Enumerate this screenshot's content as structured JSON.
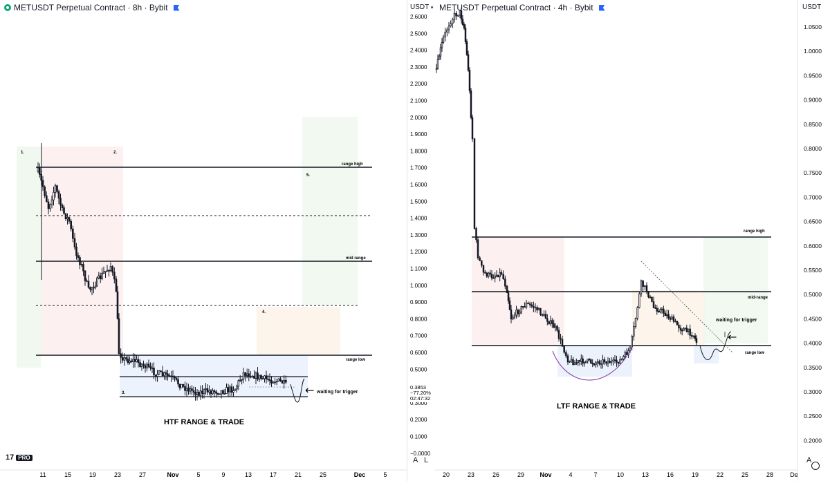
{
  "left": {
    "header_title": "METUSDT Perpetual Contract · 8h · Bybit",
    "x_ticks": [
      "11",
      "15",
      "19",
      "23",
      "27",
      "Nov",
      "5",
      "9",
      "13",
      "17",
      "21",
      "25",
      "Dec",
      "5"
    ],
    "labels": {
      "range_high": "range high",
      "mid_range": "mid range",
      "range_low": "range low",
      "waiting": "waiting for trigger",
      "caption": "HTF RANGE & TRADE",
      "n1": "1.",
      "n2": "2.",
      "n3": "3.",
      "n4": "4.",
      "n5": "5."
    },
    "logo": "17",
    "logo_badge": "PRO"
  },
  "mid_axis": {
    "unit": "USDT",
    "ticks": [
      "2.6000",
      "2.5000",
      "2.4000",
      "2.3000",
      "2.2000",
      "2.1000",
      "2.0000",
      "1.9000",
      "1.8000",
      "1.7000",
      "1.6000",
      "1.5000",
      "1.4000",
      "1.3000",
      "1.2000",
      "1.1000",
      "1.0000",
      "0.9000",
      "0.8000",
      "0.7000",
      "0.6000",
      "0.5000",
      "0.4000",
      "0.3000",
      "0.2000",
      "0.1000",
      "−0.0000"
    ],
    "price_tag": {
      "price": "0.3853",
      "change": "−77.20%",
      "countdown": "02:47:32"
    },
    "buttons": [
      "A",
      "L"
    ]
  },
  "right": {
    "header_title": "METUSDT Perpetual Contract · 4h · Bybit",
    "x_ticks": [
      "20",
      "23",
      "26",
      "29",
      "Nov",
      "4",
      "7",
      "10",
      "13",
      "16",
      "19",
      "22",
      "25",
      "28",
      "De"
    ],
    "labels": {
      "range_high": "range high",
      "mid_range": "mid-range",
      "range_low": "range low",
      "waiting": "waiting for trigger",
      "caption": "LTF RANGE & TRADE"
    }
  },
  "right_axis": {
    "unit": "USDT",
    "ticks": [
      "1.0500",
      "1.0000",
      "0.9500",
      "0.9000",
      "0.8500",
      "0.8000",
      "0.7500",
      "0.7000",
      "0.6500",
      "0.6000",
      "0.5500",
      "0.5000",
      "0.4500",
      "0.4000",
      "0.3500",
      "0.3000",
      "0.2500",
      "0.2000"
    ],
    "buttons": [
      "A"
    ]
  },
  "chart_data": [
    {
      "type": "candlestick",
      "title": "METUSDT Perpetual Contract · 8h · Bybit",
      "ylim": [
        -0.05,
        2.65
      ],
      "levels": {
        "range_high": 1.7,
        "mid_range": 1.14,
        "range_low": 0.58,
        "lower_box_top": 0.44,
        "lower_box_bottom": 0.28
      },
      "dashed_levels": [
        1.42,
        0.87
      ],
      "annotations": [
        "1.",
        "2.",
        "3.",
        "4.",
        "5.",
        "range high",
        "mid range",
        "range low",
        "waiting for trigger",
        "HTF RANGE & TRADE"
      ],
      "path_close": [
        1.68,
        1.62,
        1.5,
        1.4,
        1.46,
        1.38,
        1.3,
        1.18,
        1.08,
        0.98,
        0.93,
        0.96,
        0.98,
        1.0,
        1.05,
        0.92,
        0.58,
        0.52,
        0.51,
        0.5,
        0.44,
        0.43,
        0.43,
        0.42,
        0.4,
        0.36,
        0.34,
        0.32,
        0.32,
        0.33,
        0.35,
        0.42,
        0.45,
        0.43,
        0.41,
        0.4,
        0.38
      ]
    },
    {
      "type": "candlestick",
      "title": "METUSDT Perpetual Contract · 4h · Bybit",
      "ylim": [
        0.17,
        1.085
      ],
      "levels": {
        "range_high": 0.618,
        "mid_range": 0.504,
        "range_low": 0.395
      },
      "annotations": [
        "range high",
        "mid-range",
        "range low",
        "waiting for trigger",
        "LTF RANGE & TRADE"
      ],
      "path_close": [
        0.95,
        1.0,
        1.05,
        1.06,
        1.04,
        0.98,
        0.62,
        0.56,
        0.54,
        0.53,
        0.56,
        0.52,
        0.44,
        0.46,
        0.47,
        0.46,
        0.45,
        0.43,
        0.4,
        0.36,
        0.35,
        0.34,
        0.35,
        0.34,
        0.36,
        0.38,
        0.44,
        0.52,
        0.48,
        0.46,
        0.44,
        0.43,
        0.45,
        0.4,
        0.38,
        0.4
      ]
    }
  ]
}
